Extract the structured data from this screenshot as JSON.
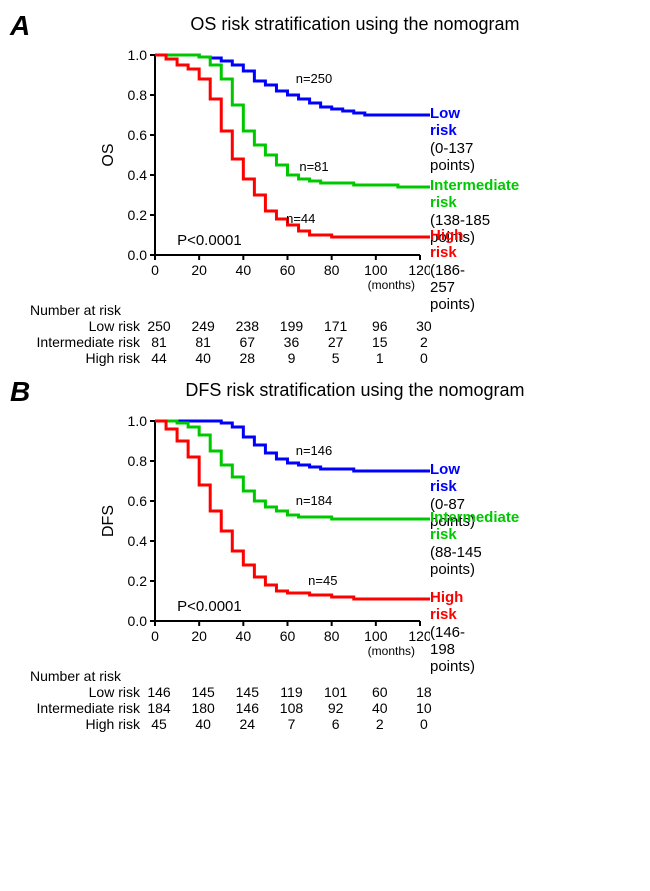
{
  "panels": {
    "A": {
      "letter": "A",
      "title": "OS risk stratification using the nomogram",
      "ylabel": "OS",
      "xlabel": "(months)",
      "pvalue": "P<0.0001",
      "type": "kaplan-meier",
      "xlim": [
        0,
        120
      ],
      "xtick_step": 20,
      "ylim": [
        0,
        1.0
      ],
      "ytick_step": 0.2,
      "background_color": "#ffffff",
      "axis_width": 2,
      "line_width": 3,
      "curves": {
        "low": {
          "color": "#0000ff",
          "n_label": "n=250",
          "legend_name": "Low risk",
          "legend_range": "(0-137 points)",
          "points": [
            [
              0,
              1.0
            ],
            [
              10,
              1.0
            ],
            [
              20,
              0.99
            ],
            [
              25,
              0.985
            ],
            [
              30,
              0.97
            ],
            [
              35,
              0.95
            ],
            [
              40,
              0.92
            ],
            [
              45,
              0.87
            ],
            [
              50,
              0.85
            ],
            [
              55,
              0.82
            ],
            [
              60,
              0.8
            ],
            [
              65,
              0.78
            ],
            [
              70,
              0.76
            ],
            [
              75,
              0.74
            ],
            [
              80,
              0.73
            ],
            [
              85,
              0.72
            ],
            [
              90,
              0.71
            ],
            [
              95,
              0.7
            ],
            [
              100,
              0.7
            ],
            [
              110,
              0.7
            ],
            [
              120,
              0.7
            ]
          ]
        },
        "intermediate": {
          "color": "#00c800",
          "n_label": "n=81",
          "legend_name": "Intermediate risk",
          "legend_range": "(138-185 points)",
          "points": [
            [
              0,
              1.0
            ],
            [
              10,
              1.0
            ],
            [
              20,
              0.99
            ],
            [
              25,
              0.95
            ],
            [
              30,
              0.88
            ],
            [
              35,
              0.75
            ],
            [
              40,
              0.62
            ],
            [
              45,
              0.55
            ],
            [
              50,
              0.5
            ],
            [
              55,
              0.45
            ],
            [
              60,
              0.4
            ],
            [
              65,
              0.38
            ],
            [
              70,
              0.37
            ],
            [
              75,
              0.36
            ],
            [
              80,
              0.36
            ],
            [
              90,
              0.35
            ],
            [
              100,
              0.35
            ],
            [
              110,
              0.34
            ],
            [
              120,
              0.34
            ]
          ]
        },
        "high": {
          "color": "#ff0000",
          "n_label": "n=44",
          "legend_name": "High risk",
          "legend_range": "(186-257 points)",
          "points": [
            [
              0,
              1.0
            ],
            [
              5,
              0.98
            ],
            [
              10,
              0.95
            ],
            [
              15,
              0.93
            ],
            [
              20,
              0.88
            ],
            [
              25,
              0.78
            ],
            [
              30,
              0.62
            ],
            [
              35,
              0.48
            ],
            [
              40,
              0.38
            ],
            [
              45,
              0.3
            ],
            [
              50,
              0.22
            ],
            [
              55,
              0.18
            ],
            [
              60,
              0.15
            ],
            [
              65,
              0.12
            ],
            [
              70,
              0.1
            ],
            [
              80,
              0.09
            ],
            [
              90,
              0.09
            ],
            [
              100,
              0.09
            ],
            [
              110,
              0.09
            ],
            [
              120,
              0.09
            ]
          ]
        }
      },
      "risk_table": {
        "header": "Number at risk",
        "x": [
          0,
          20,
          40,
          60,
          80,
          100,
          120
        ],
        "rows": [
          {
            "label": "Low risk",
            "values": [
              250,
              249,
              238,
              199,
              171,
              96,
              30
            ]
          },
          {
            "label": "Intermediate risk",
            "values": [
              81,
              81,
              67,
              36,
              27,
              15,
              2
            ]
          },
          {
            "label": "High risk",
            "values": [
              44,
              40,
              28,
              9,
              5,
              1,
              0
            ]
          }
        ]
      }
    },
    "B": {
      "letter": "B",
      "title": "DFS risk stratification using the nomogram",
      "ylabel": "DFS",
      "xlabel": "(months)",
      "pvalue": "P<0.0001",
      "type": "kaplan-meier",
      "xlim": [
        0,
        120
      ],
      "xtick_step": 20,
      "ylim": [
        0,
        1.0
      ],
      "ytick_step": 0.2,
      "background_color": "#ffffff",
      "axis_width": 2,
      "line_width": 3,
      "curves": {
        "low": {
          "color": "#0000ff",
          "n_label": "n=146",
          "legend_name": "Low risk",
          "legend_range": "(0-87 points)",
          "points": [
            [
              0,
              1.0
            ],
            [
              10,
              1.0
            ],
            [
              20,
              1.0
            ],
            [
              25,
              1.0
            ],
            [
              30,
              0.99
            ],
            [
              35,
              0.97
            ],
            [
              40,
              0.92
            ],
            [
              45,
              0.88
            ],
            [
              50,
              0.84
            ],
            [
              55,
              0.81
            ],
            [
              60,
              0.79
            ],
            [
              65,
              0.78
            ],
            [
              70,
              0.77
            ],
            [
              75,
              0.76
            ],
            [
              80,
              0.76
            ],
            [
              90,
              0.75
            ],
            [
              100,
              0.75
            ],
            [
              110,
              0.75
            ],
            [
              120,
              0.75
            ]
          ]
        },
        "intermediate": {
          "color": "#00c800",
          "n_label": "n=184",
          "legend_name": "Intermediate risk",
          "legend_range": "(88-145 points)",
          "points": [
            [
              0,
              1.0
            ],
            [
              10,
              0.99
            ],
            [
              15,
              0.97
            ],
            [
              20,
              0.93
            ],
            [
              25,
              0.85
            ],
            [
              30,
              0.78
            ],
            [
              35,
              0.72
            ],
            [
              40,
              0.65
            ],
            [
              45,
              0.6
            ],
            [
              50,
              0.57
            ],
            [
              55,
              0.55
            ],
            [
              60,
              0.53
            ],
            [
              65,
              0.52
            ],
            [
              70,
              0.52
            ],
            [
              80,
              0.51
            ],
            [
              90,
              0.51
            ],
            [
              100,
              0.51
            ],
            [
              110,
              0.51
            ],
            [
              120,
              0.51
            ]
          ]
        },
        "high": {
          "color": "#ff0000",
          "n_label": "n=45",
          "legend_name": "High risk",
          "legend_range": "(146-198 points)",
          "points": [
            [
              0,
              1.0
            ],
            [
              5,
              0.96
            ],
            [
              10,
              0.9
            ],
            [
              15,
              0.82
            ],
            [
              20,
              0.68
            ],
            [
              25,
              0.55
            ],
            [
              30,
              0.45
            ],
            [
              35,
              0.35
            ],
            [
              40,
              0.28
            ],
            [
              45,
              0.22
            ],
            [
              50,
              0.18
            ],
            [
              55,
              0.15
            ],
            [
              60,
              0.14
            ],
            [
              70,
              0.13
            ],
            [
              80,
              0.12
            ],
            [
              90,
              0.11
            ],
            [
              100,
              0.11
            ],
            [
              110,
              0.11
            ],
            [
              120,
              0.11
            ]
          ]
        }
      },
      "risk_table": {
        "header": "Number at risk",
        "x": [
          0,
          20,
          40,
          60,
          80,
          100,
          120
        ],
        "rows": [
          {
            "label": "Low risk",
            "values": [
              146,
              145,
              145,
              119,
              101,
              60,
              18
            ]
          },
          {
            "label": "Intermediate risk",
            "values": [
              184,
              180,
              146,
              108,
              92,
              40,
              10
            ]
          },
          {
            "label": "High risk",
            "values": [
              45,
              40,
              24,
              7,
              6,
              2,
              0
            ]
          }
        ]
      }
    }
  }
}
